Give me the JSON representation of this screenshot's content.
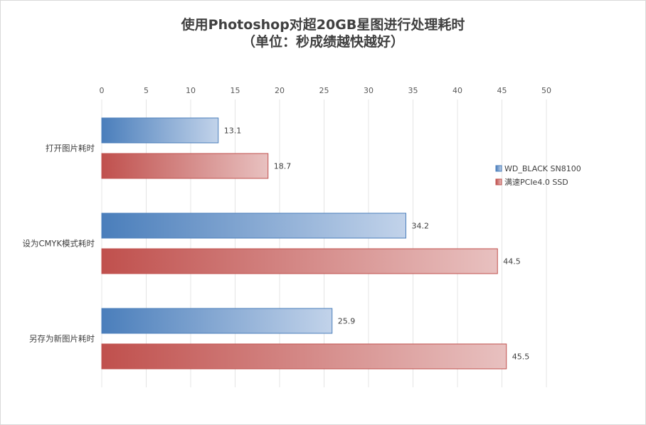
{
  "chart_data": {
    "type": "bar",
    "orientation": "horizontal",
    "title": "使用Photoshop对超20GB星图进行处理耗时",
    "subtitle": "（单位：秒成绩越快越好）",
    "categories": [
      "打开图片耗时",
      "设为CMYK模式耗时",
      "另存为新图片耗时"
    ],
    "series": [
      {
        "name": "WD_BLACK SN8100",
        "values": [
          13.1,
          34.2,
          25.9
        ],
        "color": "#4a7ebb",
        "color_light": "#c2d3ea"
      },
      {
        "name": "满速PCIe4.0 SSD",
        "values": [
          18.7,
          44.5,
          45.5
        ],
        "color": "#c0504d",
        "color_light": "#e8c1c0"
      }
    ],
    "xlim": [
      0,
      50
    ],
    "xticks": [
      "0",
      "5",
      "10",
      "15",
      "20",
      "25",
      "30",
      "35",
      "40",
      "45",
      "50"
    ],
    "x_axis_position": "top",
    "grid": true,
    "legend_position": "right"
  }
}
